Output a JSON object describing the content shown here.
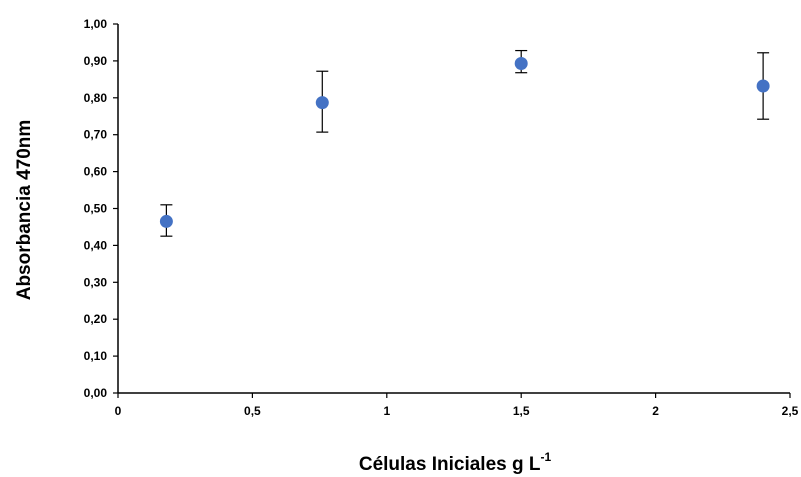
{
  "chart_data": {
    "type": "scatter",
    "title": "",
    "xlabel": "Células Iniciales g L",
    "xlabel_superscript": "-1",
    "ylabel": "Absorbancia 470nm",
    "xlim": [
      0,
      2.5
    ],
    "ylim": [
      0,
      1.0
    ],
    "x_ticks": [
      "0",
      "0,5",
      "1",
      "1,5",
      "2",
      "2,5"
    ],
    "y_ticks": [
      "0,00",
      "0,10",
      "0,20",
      "0,30",
      "0,40",
      "0,50",
      "0,60",
      "0,70",
      "0,80",
      "0,90",
      "1,00"
    ],
    "grid": false,
    "legend": "none",
    "marker_color": "#4472C4",
    "points": [
      {
        "x": 0.18,
        "y": 0.465,
        "err_low": 0.04,
        "err_high": 0.045
      },
      {
        "x": 0.76,
        "y": 0.787,
        "err_low": 0.08,
        "err_high": 0.085
      },
      {
        "x": 1.5,
        "y": 0.893,
        "err_low": 0.025,
        "err_high": 0.035
      },
      {
        "x": 2.4,
        "y": 0.832,
        "err_low": 0.09,
        "err_high": 0.09
      }
    ]
  }
}
